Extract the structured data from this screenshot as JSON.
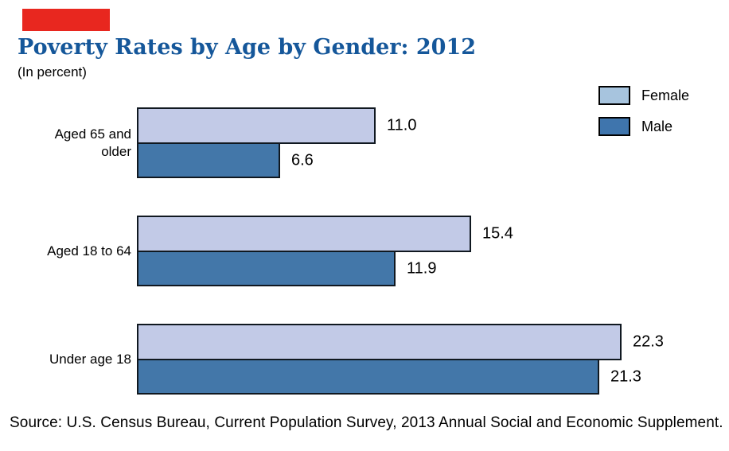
{
  "header_mark": {
    "color": "#e8271f"
  },
  "colors": {
    "title_blue": "#15579a",
    "bar_border": "#101820",
    "text": "#000000"
  },
  "chart_data": {
    "type": "bar",
    "orientation": "horizontal",
    "title": "Poverty Rates by Age by Gender: 2012",
    "subtitle": "(In percent)",
    "categories": [
      "Aged 65 and older",
      "Aged 18 to 64",
      "Under age 18"
    ],
    "series": [
      {
        "name": "Female",
        "color": "#c2cae7",
        "legend_color": "#a7c4de",
        "values": [
          11.0,
          15.4,
          22.3
        ],
        "value_labels": [
          "11.0",
          "15.4",
          "22.3"
        ]
      },
      {
        "name": "Male",
        "color": "#4377a9",
        "legend_color": "#3f75ad",
        "values": [
          6.6,
          11.9,
          21.3
        ],
        "value_labels": [
          "6.6",
          "11.9",
          "21.3"
        ]
      }
    ],
    "xlim": [
      0,
      27
    ],
    "grid": false,
    "axis_lines": false,
    "legend_position": "top-right",
    "value_label_position": "right-of-bar"
  },
  "source": "Source: U.S. Census Bureau, Current Population Survey, 2013 Annual Social and Economic Supplement."
}
